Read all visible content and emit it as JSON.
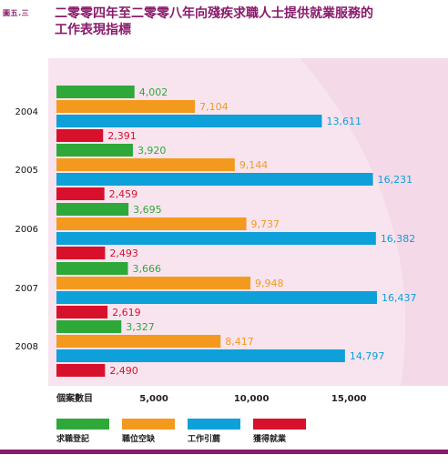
{
  "figure_label": "圖五.三",
  "title_line1": "二零零四年至二零零八年向殘疾求職人士提供就業服務的",
  "title_line2": "工作表現指標",
  "chart_data": {
    "type": "bar",
    "orientation": "horizontal",
    "categories": [
      "2004",
      "2005",
      "2006",
      "2007",
      "2008"
    ],
    "series": [
      {
        "name": "求職登記",
        "color": "#2fa83a",
        "values": [
          4002,
          3920,
          3695,
          3666,
          3327
        ],
        "labels": [
          "4,002",
          "3,920",
          "3,695",
          "3,666",
          "3,327"
        ]
      },
      {
        "name": "職位空缺",
        "color": "#f39a1e",
        "values": [
          7104,
          9144,
          9737,
          9948,
          8417
        ],
        "labels": [
          "7,104",
          "9,144",
          "9,737",
          "9,948",
          "8,417"
        ]
      },
      {
        "name": "工作引薦",
        "color": "#0ea0d8",
        "values": [
          13611,
          16231,
          16382,
          16437,
          14797
        ],
        "labels": [
          "13,611",
          "16,231",
          "16,382",
          "16,437",
          "14,797"
        ]
      },
      {
        "name": "獲得就業",
        "color": "#d7112b",
        "values": [
          2391,
          2459,
          2493,
          2619,
          2490
        ],
        "labels": [
          "2,391",
          "2,459",
          "2,493",
          "2,619",
          "2,490"
        ]
      }
    ],
    "xlabel": "個案數目",
    "xticks": [
      5000,
      10000,
      15000
    ],
    "xtick_labels": [
      "5,000",
      "10,000",
      "15,000"
    ],
    "xlim": [
      0,
      17500
    ],
    "grid": false,
    "legend": "bottom",
    "panel_color": "#f8e4ef"
  }
}
